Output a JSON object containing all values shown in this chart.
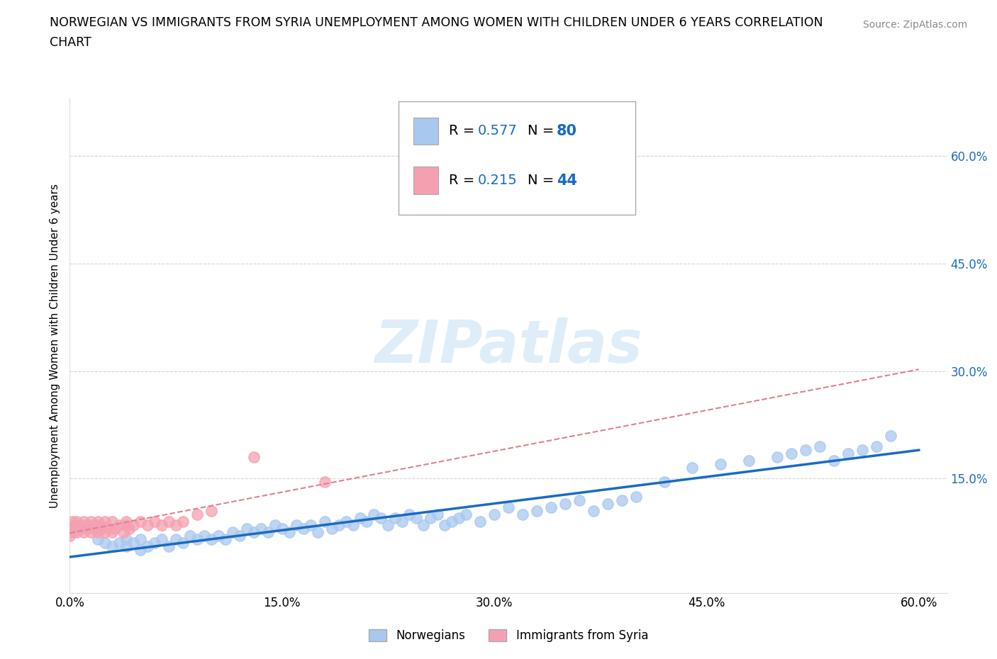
{
  "title_line1": "NORWEGIAN VS IMMIGRANTS FROM SYRIA UNEMPLOYMENT AMONG WOMEN WITH CHILDREN UNDER 6 YEARS CORRELATION",
  "title_line2": "CHART",
  "source": "Source: ZipAtlas.com",
  "ylabel": "Unemployment Among Women with Children Under 6 years",
  "xlim": [
    0.0,
    0.62
  ],
  "ylim": [
    -0.01,
    0.68
  ],
  "xtick_labels": [
    "0.0%",
    "15.0%",
    "30.0%",
    "45.0%",
    "60.0%"
  ],
  "xtick_vals": [
    0.0,
    0.15,
    0.3,
    0.45,
    0.6
  ],
  "ytick_labels": [
    "15.0%",
    "30.0%",
    "45.0%",
    "60.0%"
  ],
  "ytick_vals": [
    0.15,
    0.3,
    0.45,
    0.6
  ],
  "norwegian_color": "#a8c8f0",
  "syria_color": "#f5a0b0",
  "norwegian_line_color": "#1a6bbf",
  "syria_line_color": "#e08090",
  "legend_r_nor": "R = 0.577",
  "legend_n_nor": "N = 80",
  "legend_r_syr": "R = 0.215",
  "legend_n_syr": "N = 44",
  "blue_text_color": "#1a6bbf",
  "background_color": "#ffffff",
  "norwegian_x": [
    0.02,
    0.025,
    0.03,
    0.035,
    0.04,
    0.04,
    0.045,
    0.05,
    0.05,
    0.055,
    0.06,
    0.065,
    0.07,
    0.075,
    0.08,
    0.085,
    0.09,
    0.095,
    0.1,
    0.105,
    0.11,
    0.115,
    0.12,
    0.125,
    0.13,
    0.135,
    0.14,
    0.145,
    0.15,
    0.155,
    0.16,
    0.165,
    0.17,
    0.175,
    0.18,
    0.185,
    0.19,
    0.195,
    0.2,
    0.205,
    0.21,
    0.215,
    0.22,
    0.225,
    0.23,
    0.235,
    0.24,
    0.245,
    0.25,
    0.255,
    0.26,
    0.265,
    0.27,
    0.275,
    0.28,
    0.29,
    0.3,
    0.31,
    0.32,
    0.33,
    0.34,
    0.35,
    0.36,
    0.37,
    0.38,
    0.39,
    0.4,
    0.42,
    0.44,
    0.46,
    0.48,
    0.5,
    0.51,
    0.52,
    0.53,
    0.54,
    0.55,
    0.56,
    0.57,
    0.58
  ],
  "norwegian_y": [
    0.065,
    0.06,
    0.055,
    0.06,
    0.055,
    0.065,
    0.06,
    0.05,
    0.065,
    0.055,
    0.06,
    0.065,
    0.055,
    0.065,
    0.06,
    0.07,
    0.065,
    0.07,
    0.065,
    0.07,
    0.065,
    0.075,
    0.07,
    0.08,
    0.075,
    0.08,
    0.075,
    0.085,
    0.08,
    0.075,
    0.085,
    0.08,
    0.085,
    0.075,
    0.09,
    0.08,
    0.085,
    0.09,
    0.085,
    0.095,
    0.09,
    0.1,
    0.095,
    0.085,
    0.095,
    0.09,
    0.1,
    0.095,
    0.085,
    0.095,
    0.1,
    0.085,
    0.09,
    0.095,
    0.1,
    0.09,
    0.1,
    0.11,
    0.1,
    0.105,
    0.11,
    0.115,
    0.12,
    0.105,
    0.115,
    0.12,
    0.125,
    0.145,
    0.165,
    0.17,
    0.175,
    0.18,
    0.185,
    0.19,
    0.195,
    0.175,
    0.185,
    0.19,
    0.195,
    0.21
  ],
  "syria_x": [
    0.0,
    0.0,
    0.002,
    0.003,
    0.004,
    0.005,
    0.005,
    0.007,
    0.008,
    0.01,
    0.01,
    0.012,
    0.013,
    0.015,
    0.015,
    0.017,
    0.018,
    0.02,
    0.02,
    0.022,
    0.022,
    0.025,
    0.025,
    0.027,
    0.03,
    0.03,
    0.032,
    0.035,
    0.038,
    0.04,
    0.04,
    0.042,
    0.045,
    0.05,
    0.055,
    0.06,
    0.065,
    0.07,
    0.075,
    0.08,
    0.09,
    0.1,
    0.13,
    0.18
  ],
  "syria_y": [
    0.07,
    0.08,
    0.09,
    0.075,
    0.085,
    0.075,
    0.09,
    0.08,
    0.085,
    0.075,
    0.09,
    0.08,
    0.085,
    0.075,
    0.09,
    0.08,
    0.085,
    0.075,
    0.09,
    0.08,
    0.085,
    0.075,
    0.09,
    0.08,
    0.075,
    0.09,
    0.08,
    0.085,
    0.075,
    0.085,
    0.09,
    0.08,
    0.085,
    0.09,
    0.085,
    0.09,
    0.085,
    0.09,
    0.085,
    0.09,
    0.1,
    0.105,
    0.18,
    0.145
  ]
}
